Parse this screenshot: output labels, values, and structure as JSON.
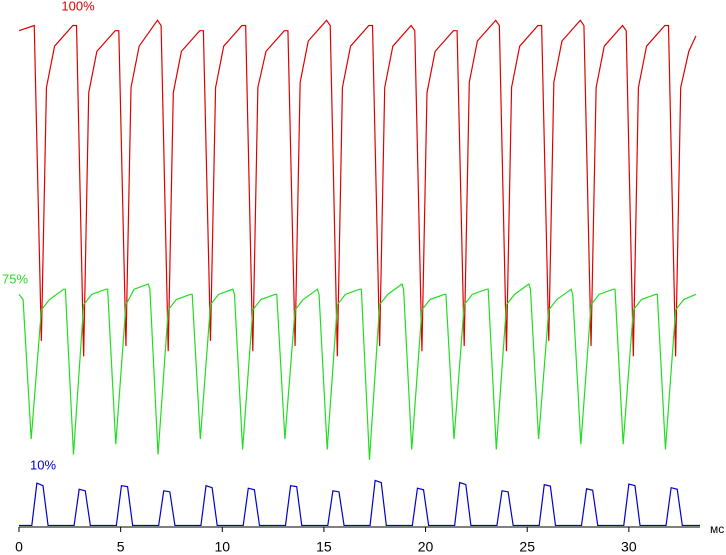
{
  "chart_data": {
    "type": "line",
    "xlabel": "мс",
    "xlim": [
      0,
      33.5
    ],
    "ylim": [
      0,
      100
    ],
    "xticks": [
      0,
      5,
      10,
      15,
      20,
      25,
      30
    ],
    "series": [
      {
        "name": "100%",
        "color": "#e00000",
        "x": [
          0,
          0.75,
          1.1,
          1.35,
          1.75,
          2.65,
          2.83,
          3.18,
          3.43,
          3.83,
          4.73,
          4.91,
          5.26,
          5.51,
          5.91,
          6.81,
          6.99,
          7.34,
          7.59,
          7.99,
          8.89,
          9.07,
          9.42,
          9.67,
          10.07,
          10.97,
          11.15,
          11.5,
          11.75,
          12.15,
          13.05,
          13.23,
          13.58,
          13.83,
          14.23,
          15.13,
          15.31,
          15.66,
          15.91,
          16.31,
          17.21,
          17.39,
          17.74,
          17.99,
          18.39,
          19.29,
          19.47,
          19.82,
          20.07,
          20.47,
          21.37,
          21.55,
          21.9,
          22.15,
          22.55,
          23.45,
          23.63,
          23.98,
          24.23,
          24.63,
          25.53,
          25.71,
          26.06,
          26.31,
          26.71,
          27.61,
          27.79,
          28.14,
          28.39,
          28.79,
          29.69,
          29.87,
          30.22,
          30.47,
          30.87,
          31.77,
          31.95,
          32.3,
          32.55,
          32.95,
          33.3
        ],
        "values": [
          96,
          97,
          36,
          85,
          93,
          97,
          97,
          33,
          84,
          92,
          96,
          96,
          35,
          85,
          93,
          98,
          97,
          34,
          84,
          92,
          96,
          96,
          36,
          85,
          93,
          97,
          97,
          34,
          85,
          92,
          96,
          96,
          35,
          86,
          94,
          98,
          97,
          33,
          85,
          93,
          97,
          97,
          35,
          85,
          93,
          97,
          96,
          34,
          84,
          92,
          96,
          96,
          35,
          86,
          94,
          98,
          97,
          34,
          85,
          93,
          97,
          97,
          36,
          86,
          94,
          98,
          97,
          35,
          85,
          93,
          97,
          96,
          33,
          85,
          93,
          97,
          97,
          33,
          85,
          92,
          95
        ]
      },
      {
        "name": "75%",
        "color": "#22dd22",
        "x": [
          0,
          0.2,
          0.6,
          1.1,
          1.5,
          2.2,
          2.28,
          2.68,
          3.18,
          3.58,
          4.28,
          4.36,
          4.76,
          5.26,
          5.66,
          6.36,
          6.44,
          6.84,
          7.34,
          7.74,
          8.44,
          8.52,
          8.92,
          9.42,
          9.82,
          10.52,
          10.6,
          11.0,
          11.5,
          11.9,
          12.6,
          12.68,
          13.08,
          13.58,
          13.98,
          14.68,
          14.76,
          15.16,
          15.66,
          16.06,
          16.76,
          16.84,
          17.24,
          17.74,
          18.14,
          18.84,
          18.92,
          19.32,
          19.82,
          20.22,
          20.92,
          21.0,
          21.4,
          21.9,
          22.3,
          23.0,
          23.08,
          23.48,
          23.98,
          24.38,
          25.08,
          25.16,
          25.56,
          26.06,
          26.46,
          27.16,
          27.24,
          27.64,
          28.14,
          28.54,
          29.24,
          29.32,
          29.72,
          30.22,
          30.62,
          31.32,
          31.4,
          31.8,
          32.3,
          32.7,
          33.3
        ],
        "values": [
          45,
          44,
          17,
          42,
          44,
          46,
          46,
          14,
          43,
          45,
          46,
          46,
          16,
          43,
          46,
          47,
          46,
          14,
          42,
          44,
          45,
          45,
          17,
          43,
          45,
          46,
          45,
          15,
          42,
          44,
          45,
          45,
          17,
          42,
          44,
          46,
          45,
          15,
          43,
          45,
          46,
          46,
          13,
          43,
          45,
          47,
          46,
          15,
          42,
          44,
          45,
          45,
          17,
          43,
          45,
          46,
          46,
          15,
          43,
          45,
          47,
          46,
          17,
          42,
          44,
          46,
          45,
          16,
          43,
          45,
          46,
          46,
          16,
          42,
          44,
          45,
          45,
          15,
          42,
          44,
          45
        ]
      },
      {
        "name": "10%",
        "color": "#0000cc",
        "x": [
          0,
          0.63,
          0.88,
          1.18,
          1.43,
          2.71,
          2.96,
          3.26,
          3.51,
          4.79,
          5.04,
          5.34,
          5.59,
          6.87,
          7.12,
          7.42,
          7.67,
          8.95,
          9.2,
          9.5,
          9.75,
          11.03,
          11.28,
          11.58,
          11.83,
          13.11,
          13.36,
          13.66,
          13.91,
          15.19,
          15.44,
          15.74,
          15.99,
          17.27,
          17.52,
          17.82,
          18.07,
          19.35,
          19.6,
          19.9,
          20.15,
          21.43,
          21.68,
          21.98,
          22.23,
          23.51,
          23.76,
          24.06,
          24.31,
          25.59,
          25.84,
          26.14,
          26.39,
          27.67,
          27.92,
          28.22,
          28.47,
          29.75,
          30.0,
          30.3,
          30.55,
          31.83,
          32.08,
          32.38,
          32.63,
          33.5
        ],
        "values": [
          0.3,
          0.3,
          8.5,
          8,
          0.3,
          0.3,
          7.3,
          7,
          0.3,
          0.3,
          8,
          7.8,
          0.3,
          0.3,
          7,
          6.8,
          0.3,
          0.3,
          8,
          7.6,
          0.3,
          0.3,
          7.5,
          7.2,
          0.3,
          0.3,
          8,
          7.8,
          0.3,
          0.3,
          7,
          6.8,
          0.3,
          0.3,
          9,
          8.6,
          0.3,
          0.3,
          7.5,
          7.2,
          0.3,
          0.3,
          8.6,
          8.2,
          0.3,
          0.3,
          7,
          6.8,
          0.3,
          0.3,
          8.2,
          7.9,
          0.3,
          0.3,
          7.4,
          7.1,
          0.3,
          0.3,
          8.3,
          8,
          0.3,
          0.3,
          7.6,
          7.3,
          0.3,
          0.3
        ]
      }
    ]
  }
}
